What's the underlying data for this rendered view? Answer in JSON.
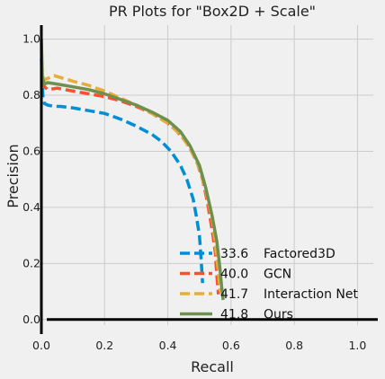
{
  "chart_data": {
    "type": "line",
    "title": "PR Plots for \"Box2D + Scale\"",
    "xlabel": "Recall",
    "ylabel": "Precision",
    "xlim": [
      0.0,
      1.05
    ],
    "ylim": [
      -0.02,
      1.05
    ],
    "xticks": [
      "0.0",
      "0.2",
      "0.4",
      "0.6",
      "0.8",
      "1.0"
    ],
    "yticks": [
      "0.0",
      "0.2",
      "0.4",
      "0.6",
      "0.8",
      "1.0"
    ],
    "grid": true,
    "legend_position": "bottom-right",
    "series": [
      {
        "name": "Factored3D",
        "score": "33.6",
        "color": "#008fd5",
        "dash": "dashed",
        "x": [
          0.0,
          0.005,
          0.01,
          0.02,
          0.04,
          0.06,
          0.1,
          0.15,
          0.2,
          0.25,
          0.3,
          0.35,
          0.38,
          0.41,
          0.44,
          0.46,
          0.48,
          0.49,
          0.5,
          0.505,
          0.51
        ],
        "y": [
          0.93,
          0.79,
          0.77,
          0.765,
          0.76,
          0.76,
          0.755,
          0.745,
          0.735,
          0.715,
          0.69,
          0.66,
          0.635,
          0.6,
          0.55,
          0.5,
          0.43,
          0.37,
          0.3,
          0.22,
          0.13
        ]
      },
      {
        "name": "GCN",
        "score": "40.0",
        "color": "#fc4f30",
        "dash": "dashed",
        "x": [
          0.0,
          0.005,
          0.01,
          0.02,
          0.05,
          0.1,
          0.15,
          0.2,
          0.25,
          0.3,
          0.35,
          0.4,
          0.43,
          0.46,
          0.49,
          0.51,
          0.525,
          0.54,
          0.55,
          0.555,
          0.56
        ],
        "y": [
          0.85,
          0.84,
          0.83,
          0.82,
          0.825,
          0.815,
          0.805,
          0.795,
          0.78,
          0.76,
          0.735,
          0.7,
          0.67,
          0.63,
          0.57,
          0.5,
          0.42,
          0.32,
          0.24,
          0.16,
          0.09
        ]
      },
      {
        "name": "Interaction Net",
        "score": "41.7",
        "color": "#e5ae38",
        "dash": "dashed",
        "x": [
          0.0,
          0.003,
          0.01,
          0.02,
          0.04,
          0.07,
          0.1,
          0.15,
          0.2,
          0.25,
          0.3,
          0.35,
          0.4,
          0.44,
          0.47,
          0.5,
          0.52,
          0.54,
          0.55,
          0.56,
          0.565
        ],
        "y": [
          0.97,
          0.87,
          0.855,
          0.86,
          0.87,
          0.86,
          0.85,
          0.835,
          0.815,
          0.79,
          0.765,
          0.735,
          0.7,
          0.66,
          0.61,
          0.54,
          0.46,
          0.36,
          0.27,
          0.17,
          0.1
        ]
      },
      {
        "name": "Ours",
        "score": "41.8",
        "color": "#6d904f",
        "dash": "solid",
        "x": [
          0.0,
          0.003,
          0.01,
          0.02,
          0.05,
          0.1,
          0.15,
          0.2,
          0.25,
          0.3,
          0.35,
          0.4,
          0.44,
          0.47,
          0.5,
          0.52,
          0.54,
          0.555,
          0.565,
          0.57,
          0.575
        ],
        "y": [
          1.0,
          0.86,
          0.84,
          0.845,
          0.84,
          0.83,
          0.82,
          0.805,
          0.785,
          0.765,
          0.74,
          0.71,
          0.67,
          0.62,
          0.55,
          0.47,
          0.37,
          0.28,
          0.18,
          0.12,
          0.07
        ]
      }
    ]
  }
}
